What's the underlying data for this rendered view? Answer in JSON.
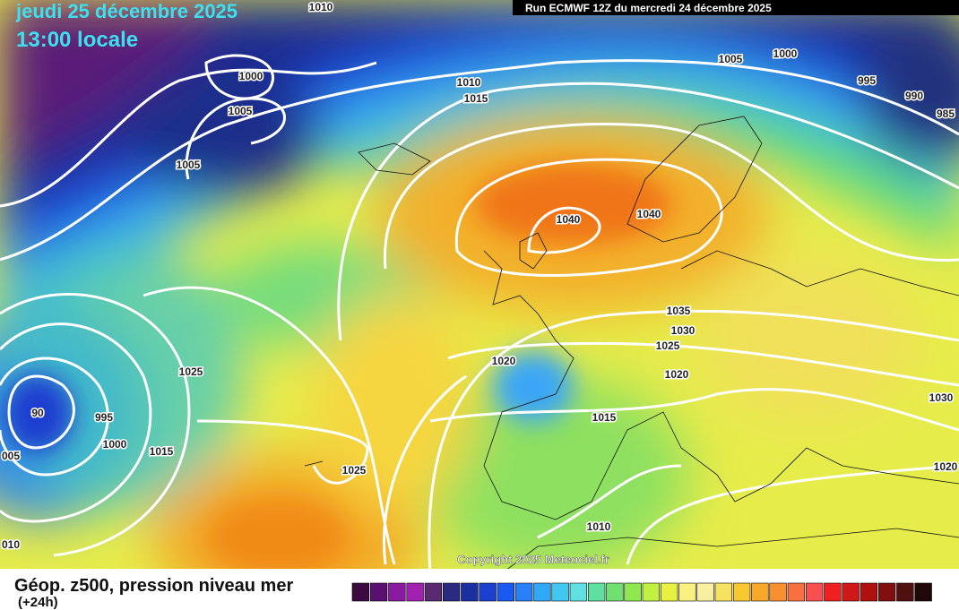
{
  "header": {
    "date": "jeudi 25 décembre 2025",
    "time": "13:00 locale",
    "run": "Run ECMWF 12Z du mercredi 24 décembre 2025"
  },
  "map": {
    "isobar_labels": [
      "1010",
      "1000",
      "1005",
      "1005",
      "1010",
      "1015",
      "1005",
      "1000",
      "995",
      "990",
      "985",
      "1040",
      "1040",
      "1035",
      "1030",
      "1025",
      "1020",
      "1020",
      "1025",
      "995",
      "90",
      "1000",
      "005",
      "1015",
      "1025",
      "1015",
      "1010",
      "010",
      "1030",
      "1020"
    ],
    "copyright": "Copyright 2025 Meteociel.fr"
  },
  "legend": {
    "title": "Géop. z500, pression niveau mer",
    "subtitle": "(+24h)"
  }
}
